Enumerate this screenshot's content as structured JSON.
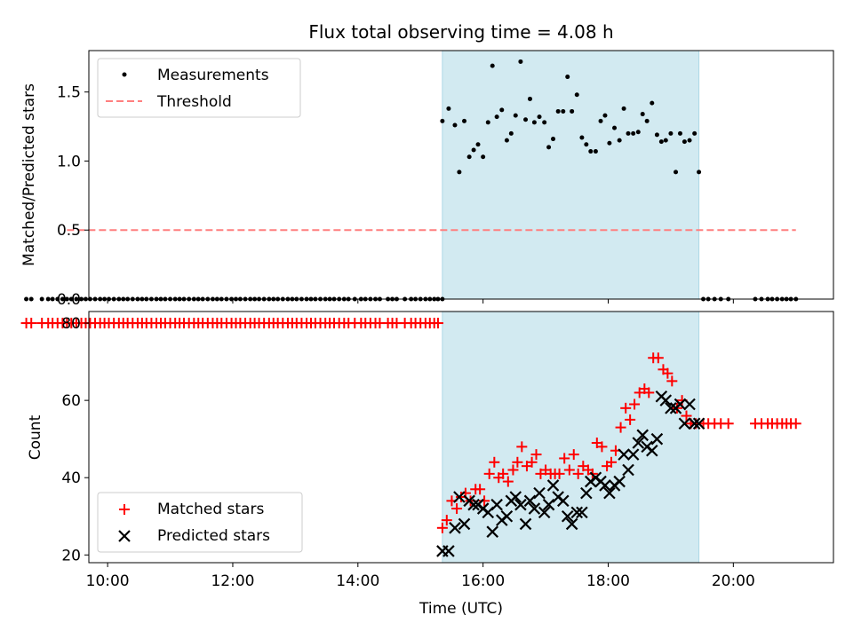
{
  "chart_data": {
    "title": "Flux total observing time = 4.08 h",
    "xlabel": "Time (UTC)",
    "x_unit": "hours (UTC)",
    "xlim": [
      9.7,
      21.6
    ],
    "xticks": [
      {
        "value": 10,
        "label": "10:00"
      },
      {
        "value": 12,
        "label": "12:00"
      },
      {
        "value": 14,
        "label": "14:00"
      },
      {
        "value": 16,
        "label": "16:00"
      },
      {
        "value": 18,
        "label": "18:00"
      },
      {
        "value": 20,
        "label": "20:00"
      }
    ],
    "highlight_span": [
      15.35,
      19.45
    ],
    "highlight_color": "#add8e6",
    "panels": [
      {
        "type": "scatter",
        "ylabel": "Matched/Predicted stars",
        "ylim": [
          0,
          1.8
        ],
        "yticks": [
          {
            "value": 0,
            "label": "0.0"
          },
          {
            "value": 0.5,
            "label": "0.5"
          },
          {
            "value": 1.0,
            "label": "1.0"
          },
          {
            "value": 1.5,
            "label": "1.5"
          }
        ],
        "legend": {
          "position": "upper-left",
          "entries": [
            "Measurements",
            "Threshold"
          ]
        },
        "threshold": {
          "name": "Threshold",
          "y": 0.5,
          "x": [
            9.35,
            21.0
          ],
          "color": "#ff7f7f"
        },
        "measurements": {
          "name": "Measurements",
          "color": "#000000",
          "zero_x": [
            8.7,
            8.78,
            8.95,
            9.05,
            9.12,
            9.2,
            9.28,
            9.35,
            9.42,
            9.5,
            9.58,
            9.65,
            9.72,
            9.8,
            9.88,
            9.95,
            10.02,
            10.1,
            10.18,
            10.25,
            10.32,
            10.4,
            10.48,
            10.55,
            10.62,
            10.7,
            10.78,
            10.85,
            10.92,
            11.0,
            11.08,
            11.15,
            11.22,
            11.3,
            11.38,
            11.45,
            11.52,
            11.6,
            11.68,
            11.75,
            11.82,
            11.9,
            11.98,
            12.05,
            12.12,
            12.2,
            12.28,
            12.35,
            12.42,
            12.5,
            12.58,
            12.65,
            12.72,
            12.8,
            12.88,
            12.95,
            13.02,
            13.1,
            13.18,
            13.25,
            13.32,
            13.4,
            13.48,
            13.55,
            13.62,
            13.7,
            13.78,
            13.85,
            13.95,
            14.05,
            14.12,
            14.2,
            14.28,
            14.35,
            14.48,
            14.55,
            14.62,
            14.75,
            14.85,
            14.92,
            15.0,
            15.08,
            15.15,
            15.22,
            15.28,
            15.35,
            19.52,
            19.6,
            19.7,
            19.8,
            19.92,
            20.35,
            20.45,
            20.55,
            20.62,
            20.7,
            20.78,
            20.85,
            20.92,
            21.0
          ],
          "x": [
            15.35,
            15.45,
            15.55,
            15.62,
            15.7,
            15.78,
            15.85,
            15.92,
            16.0,
            16.08,
            16.15,
            16.22,
            16.3,
            16.38,
            16.45,
            16.52,
            16.6,
            16.68,
            16.75,
            16.82,
            16.9,
            16.98,
            17.05,
            17.12,
            17.2,
            17.28,
            17.35,
            17.42,
            17.5,
            17.58,
            17.65,
            17.72,
            17.8,
            17.88,
            17.95,
            18.02,
            18.1,
            18.18,
            18.25,
            18.32,
            18.4,
            18.48,
            18.55,
            18.62,
            18.7,
            18.78,
            18.85,
            18.92,
            19.0,
            19.08,
            19.15,
            19.22,
            19.3,
            19.38,
            19.45
          ],
          "y": [
            1.29,
            1.38,
            1.26,
            0.92,
            1.29,
            1.03,
            1.08,
            1.12,
            1.03,
            1.28,
            1.69,
            1.32,
            1.37,
            1.15,
            1.2,
            1.33,
            1.72,
            1.3,
            1.45,
            1.28,
            1.32,
            1.28,
            1.1,
            1.16,
            1.36,
            1.36,
            1.61,
            1.36,
            1.48,
            1.17,
            1.12,
            1.07,
            1.07,
            1.29,
            1.33,
            1.13,
            1.24,
            1.15,
            1.38,
            1.2,
            1.2,
            1.21,
            1.34,
            1.29,
            1.42,
            1.19,
            1.14,
            1.15,
            1.2,
            0.92,
            1.2,
            1.14,
            1.15,
            1.2,
            0.92
          ]
        }
      },
      {
        "type": "scatter",
        "ylabel": "Count",
        "ylim": [
          18,
          83
        ],
        "yticks": [
          {
            "value": 20,
            "label": "20"
          },
          {
            "value": 40,
            "label": "40"
          },
          {
            "value": 60,
            "label": "60"
          },
          {
            "value": 80,
            "label": "80"
          }
        ],
        "legend": {
          "position": "lower-left",
          "entries": [
            "Matched stars",
            "Predicted stars"
          ]
        },
        "matched_constant": [
          {
            "x": [
              8.7,
              8.78,
              8.95,
              9.05,
              9.12,
              9.2,
              9.28,
              9.35,
              9.42,
              9.5,
              9.58,
              9.65,
              9.72,
              9.8,
              9.88,
              9.95,
              10.02,
              10.1,
              10.18,
              10.25,
              10.32,
              10.4,
              10.48,
              10.55,
              10.62,
              10.7,
              10.78,
              10.85,
              10.92,
              11.0,
              11.08,
              11.15,
              11.22,
              11.3,
              11.38,
              11.45,
              11.52,
              11.6,
              11.68,
              11.75,
              11.82,
              11.9,
              11.98,
              12.05,
              12.12,
              12.2,
              12.28,
              12.35,
              12.42,
              12.5,
              12.58,
              12.65,
              12.72,
              12.8,
              12.88,
              12.95,
              13.02,
              13.1,
              13.18,
              13.25,
              13.32,
              13.4,
              13.48,
              13.55,
              13.62,
              13.7,
              13.78,
              13.85,
              13.95,
              14.05,
              14.12,
              14.2,
              14.28,
              14.35,
              14.48,
              14.55,
              14.62,
              14.75,
              14.85,
              14.92,
              15.0,
              15.08,
              15.15,
              15.22,
              15.28
            ],
            "y": 80
          },
          {
            "x": [
              19.52,
              19.6,
              19.7,
              19.8,
              19.92,
              20.35,
              20.45,
              20.55,
              20.62,
              20.7,
              20.78,
              20.85,
              20.92,
              21.0
            ],
            "y": 54
          }
        ],
        "series": [
          {
            "name": "Matched stars",
            "marker": "plus",
            "color": "#ff0000",
            "x": [
              15.35,
              15.42,
              15.5,
              15.58,
              15.65,
              15.72,
              15.8,
              15.88,
              15.95,
              16.02,
              16.1,
              16.18,
              16.25,
              16.32,
              16.4,
              16.48,
              16.55,
              16.62,
              16.7,
              16.78,
              16.85,
              16.92,
              17.0,
              17.08,
              17.15,
              17.22,
              17.3,
              17.38,
              17.45,
              17.52,
              17.6,
              17.68,
              17.75,
              17.82,
              17.9,
              17.98,
              18.05,
              18.12,
              18.2,
              18.28,
              18.35,
              18.42,
              18.5,
              18.58,
              18.65,
              18.72,
              18.8,
              18.88,
              18.95,
              19.02,
              19.1,
              19.18,
              19.25,
              19.32,
              19.4
            ],
            "y": [
              27,
              29,
              34,
              32,
              35,
              36,
              34,
              37,
              37,
              34,
              41,
              44,
              40,
              41,
              39,
              42,
              44,
              48,
              43,
              44,
              46,
              41,
              42,
              41,
              41,
              41,
              45,
              42,
              46,
              41,
              43,
              42,
              41,
              49,
              48,
              43,
              44,
              47,
              53,
              58,
              55,
              59,
              62,
              63,
              62,
              71,
              71,
              68,
              67,
              65,
              58,
              60,
              56,
              54,
              54
            ]
          },
          {
            "name": "Predicted stars",
            "marker": "x",
            "color": "#000000",
            "x": [
              15.35,
              15.45,
              15.55,
              15.62,
              15.7,
              15.78,
              15.85,
              15.92,
              16.0,
              16.08,
              16.15,
              16.22,
              16.3,
              16.38,
              16.45,
              16.52,
              16.6,
              16.68,
              16.75,
              16.82,
              16.9,
              16.98,
              17.05,
              17.12,
              17.2,
              17.28,
              17.35,
              17.42,
              17.5,
              17.58,
              17.65,
              17.72,
              17.8,
              17.88,
              17.95,
              18.02,
              18.1,
              18.18,
              18.25,
              18.32,
              18.4,
              18.48,
              18.55,
              18.62,
              18.7,
              18.78,
              18.85,
              18.92,
              19.0,
              19.08,
              19.15,
              19.22,
              19.3,
              19.38,
              19.45
            ],
            "y": [
              21,
              21,
              27,
              35,
              28,
              34,
              33,
              33,
              32,
              31,
              26,
              33,
              29,
              30,
              34,
              35,
              33,
              28,
              34,
              32,
              36,
              31,
              33,
              38,
              35,
              34,
              30,
              28,
              31,
              31,
              36,
              39,
              40,
              39,
              38,
              36,
              38,
              39,
              46,
              42,
              46,
              49,
              51,
              48,
              47,
              50,
              61,
              60,
              58,
              58,
              59,
              54,
              59,
              54,
              54
            ]
          }
        ]
      }
    ]
  }
}
